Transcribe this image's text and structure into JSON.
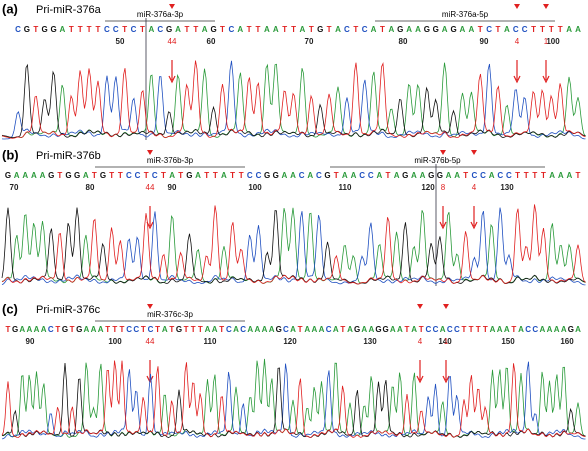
{
  "panels": [
    {
      "label": "(a)",
      "name": "Pri-miR-376a",
      "arms": [
        "miR-376a-3p",
        "miR-376a-5p"
      ],
      "sequence": "CGTGGATTTTCCTCTACGATTAGTCATTAATTATGTACTCATAGAAGGAGAATCTACCTTTTAA",
      "positions": [
        50,
        60,
        70,
        80,
        90,
        100
      ],
      "sites": [
        "44",
        "4",
        "1"
      ]
    },
    {
      "label": "(b)",
      "name": "Pri-miR-376b",
      "arms": [
        "miR-376b-3p",
        "miR-376b-5p"
      ],
      "sequence": "GAAAAGTGGATGTTCCTCTATGATTATTCCGGAACACGTAACCATAGAAGGAATCCACCTTTTAAAT",
      "positions": [
        70,
        80,
        90,
        100,
        110,
        120,
        130
      ],
      "sites": [
        "44",
        "8",
        "4"
      ]
    },
    {
      "label": "(c)",
      "name": "Pri-miR-376c",
      "arms": [
        "miR-376c-3p"
      ],
      "sequence": "TGAAAACTGTGAAATTTCCTCTATGTTTAATCACAAAAGCATAAACATAGAAGGAATATCCACCTTTTAAATACCAAAAGA",
      "positions": [
        90,
        100,
        110,
        120,
        130,
        140,
        150,
        160
      ],
      "sites": [
        "44",
        "4",
        "1"
      ]
    }
  ]
}
